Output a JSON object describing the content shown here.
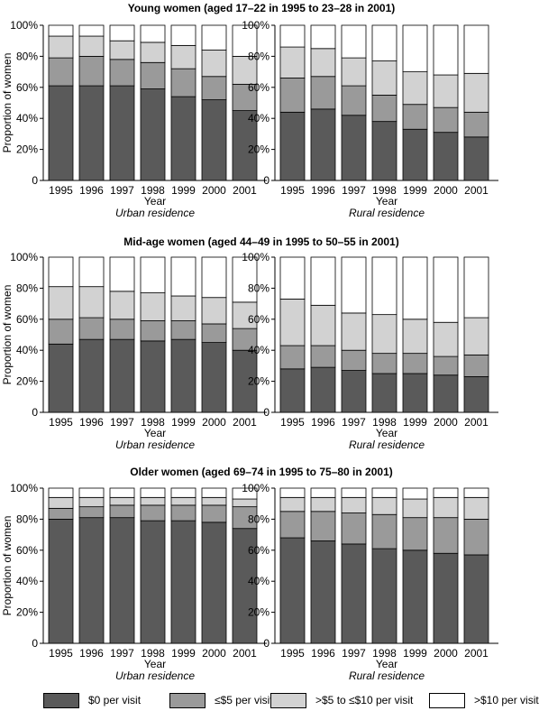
{
  "chart_data": {
    "type": "bar",
    "stacked": true,
    "normalized": true,
    "y_axis_label": "Proportion of women",
    "x_axis_label": "Year",
    "categories": [
      "1995",
      "1996",
      "1997",
      "1998",
      "1999",
      "2000",
      "2001"
    ],
    "yticks": [
      "0",
      "20%",
      "40%",
      "60%",
      "80%",
      "100%"
    ],
    "ylim": [
      0,
      100
    ],
    "series": [
      {
        "name": "$0 per visit",
        "color": "#5a5a5a"
      },
      {
        "name": "≤$5 per visit",
        "color": "#9a9a9a"
      },
      {
        "name": ">$5 to ≤$10 per visit",
        "color": "#d2d2d2"
      },
      {
        "name": ">$10 per visit",
        "color": "#ffffff"
      }
    ],
    "panels": [
      {
        "title": "Young women (aged 17–22 in 1995 to 23–28 in 2001)",
        "charts": [
          {
            "caption": "Urban residence",
            "values": {
              "$0 per visit": [
                61,
                61,
                61,
                59,
                54,
                52,
                45
              ],
              "≤$5 per visit": [
                18,
                19,
                17,
                17,
                18,
                15,
                17
              ],
              ">$5 to ≤$10 per visit": [
                14,
                13,
                12,
                13,
                15,
                17,
                18
              ],
              ">$10 per visit": [
                7,
                7,
                10,
                11,
                13,
                16,
                20
              ]
            }
          },
          {
            "caption": "Rural residence",
            "values": {
              "$0 per visit": [
                44,
                46,
                42,
                38,
                33,
                31,
                28
              ],
              "≤$5 per visit": [
                22,
                21,
                19,
                17,
                16,
                16,
                16
              ],
              ">$5 to ≤$10 per visit": [
                20,
                18,
                18,
                22,
                21,
                21,
                25
              ],
              ">$10 per visit": [
                14,
                15,
                21,
                23,
                30,
                32,
                31
              ]
            }
          }
        ]
      },
      {
        "title": "Mid-age women (aged 44–49 in 1995 to 50–55 in 2001)",
        "charts": [
          {
            "caption": "Urban residence",
            "values": {
              "$0 per visit": [
                44,
                47,
                47,
                46,
                47,
                45,
                40
              ],
              "≤$5 per visit": [
                16,
                14,
                13,
                13,
                12,
                12,
                14
              ],
              ">$5 to ≤$10 per visit": [
                21,
                20,
                18,
                18,
                16,
                17,
                17
              ],
              ">$10 per visit": [
                19,
                19,
                22,
                23,
                25,
                26,
                29
              ]
            }
          },
          {
            "caption": "Rural residence",
            "values": {
              "$0 per visit": [
                28,
                29,
                27,
                25,
                25,
                24,
                23
              ],
              "≤$5 per visit": [
                15,
                14,
                13,
                13,
                13,
                12,
                14
              ],
              ">$5 to ≤$10 per visit": [
                30,
                26,
                24,
                25,
                22,
                22,
                24
              ],
              ">$10 per visit": [
                27,
                31,
                36,
                37,
                40,
                42,
                39
              ]
            }
          }
        ]
      },
      {
        "title": "Older women (aged 69–74 in 1995 to 75–80 in 2001)",
        "charts": [
          {
            "caption": "Urban residence",
            "values": {
              "$0 per visit": [
                80,
                81,
                81,
                79,
                79,
                78,
                74
              ],
              "≤$5 per visit": [
                7,
                7,
                8,
                10,
                10,
                11,
                14
              ],
              ">$5 to ≤$10 per visit": [
                7,
                6,
                5,
                5,
                5,
                5,
                5
              ],
              ">$10 per visit": [
                6,
                6,
                6,
                6,
                6,
                6,
                7
              ]
            }
          },
          {
            "caption": "Rural residence",
            "values": {
              "$0 per visit": [
                68,
                66,
                64,
                61,
                60,
                58,
                57
              ],
              "≤$5 per visit": [
                17,
                19,
                20,
                22,
                21,
                23,
                23
              ],
              ">$5 to ≤$10 per visit": [
                9,
                9,
                10,
                11,
                12,
                13,
                14
              ],
              ">$10 per visit": [
                6,
                6,
                6,
                6,
                7,
                6,
                6
              ]
            }
          }
        ]
      }
    ],
    "legend_position": "bottom"
  }
}
